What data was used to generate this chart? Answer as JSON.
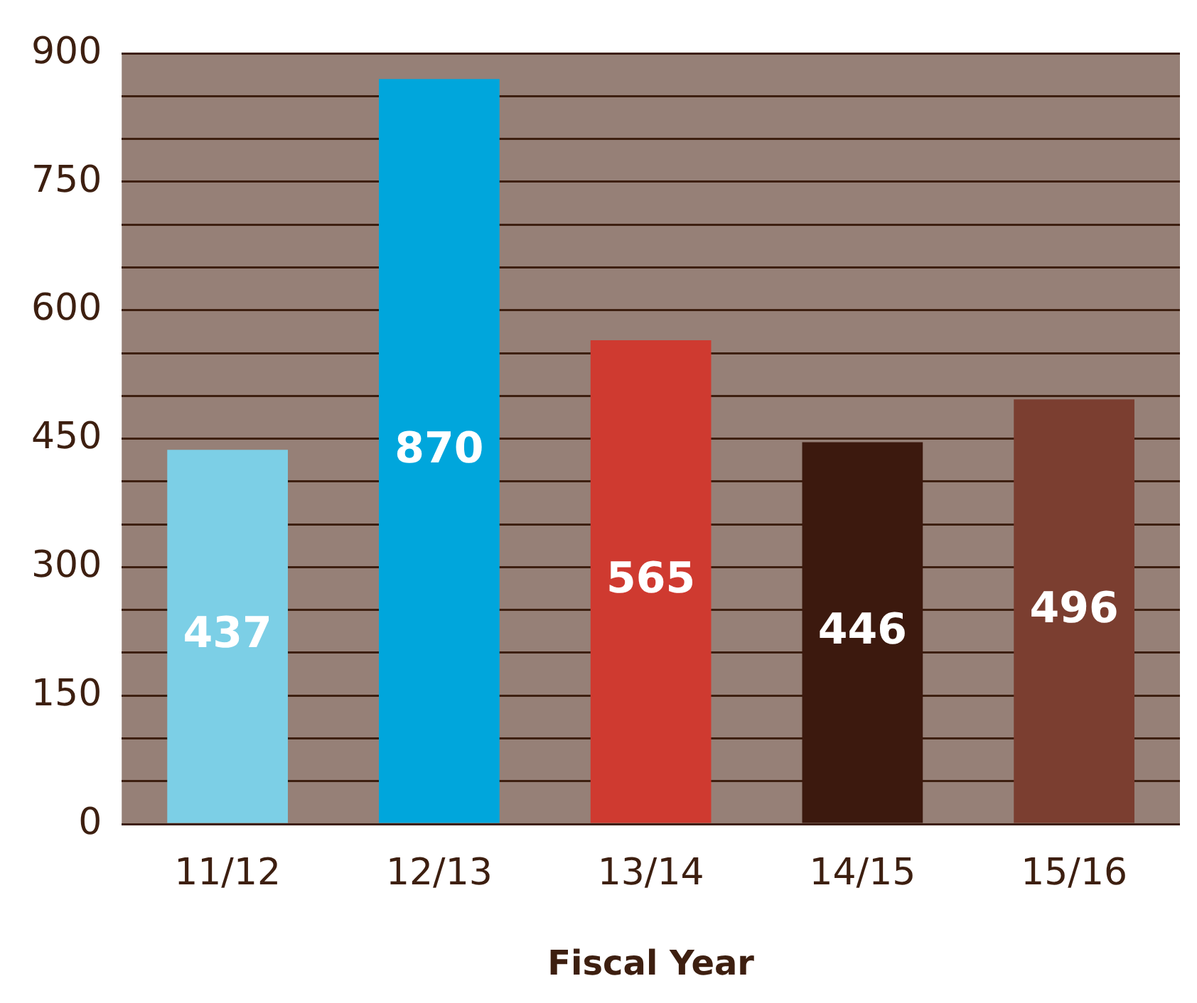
{
  "chart_data": {
    "type": "bar",
    "xlabel": "Fiscal Year",
    "categories": [
      "11/12",
      "12/13",
      "13/14",
      "14/15",
      "15/16"
    ],
    "values": [
      437,
      870,
      565,
      446,
      496
    ],
    "colors": [
      "#7ccfe6",
      "#00a6dc",
      "#cf3a30",
      "#3c190e",
      "#7b3e30"
    ],
    "ylim": [
      0,
      900
    ],
    "yticks": [
      0,
      {
        "value": 50,
        "label": null
      },
      {
        "value": 100,
        "label": null
      },
      150,
      {
        "value": 200,
        "label": null
      },
      {
        "value": 250,
        "label": null
      },
      300,
      {
        "value": 350,
        "label": null
      },
      {
        "value": 400,
        "label": null
      },
      450,
      {
        "value": 500,
        "label": null
      },
      {
        "value": 550,
        "label": null
      },
      600,
      {
        "value": 650,
        "label": null
      },
      {
        "value": 700,
        "label": null
      },
      750,
      {
        "value": 800,
        "label": null
      },
      {
        "value": 850,
        "label": null
      },
      900
    ],
    "grid": "y",
    "data_labels": true,
    "legend": false
  }
}
